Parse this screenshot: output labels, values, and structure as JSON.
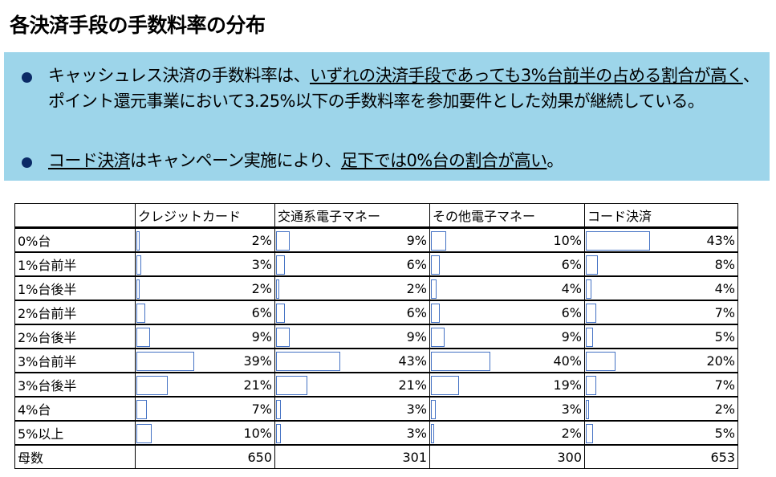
{
  "title": "各決済手段の手数料率の分布",
  "bullets": [
    {
      "parts": [
        {
          "t": "キャッシュレス決済の手数料率は、",
          "u": false
        },
        {
          "t": "いずれの決済手段であっても3%台前半の占める割合が高く",
          "u": true
        },
        {
          "t": "、ポイント還元事業において3.25%以下の手数料率を参加要件とした効果が継続している。",
          "u": false
        }
      ]
    },
    {
      "parts": [
        {
          "t": "コード決済",
          "u": true
        },
        {
          "t": "はキャンペーン実施により、",
          "u": false
        },
        {
          "t": "足下では0%台の割合が高い",
          "u": true
        },
        {
          "t": "。",
          "u": false
        }
      ]
    }
  ],
  "table": {
    "headers": [
      "",
      "クレジットカード",
      "交通系電子マネー",
      "その他電子マネー",
      "コード決済"
    ],
    "rows": [
      {
        "label": "0%台",
        "values": [
          2,
          9,
          10,
          43
        ]
      },
      {
        "label": "1%台前半",
        "values": [
          3,
          6,
          6,
          8
        ]
      },
      {
        "label": "1%台後半",
        "values": [
          2,
          2,
          4,
          4
        ]
      },
      {
        "label": "2%台前半",
        "values": [
          6,
          6,
          6,
          7
        ]
      },
      {
        "label": "2%台後半",
        "values": [
          9,
          9,
          9,
          5
        ]
      },
      {
        "label": "3%台前半",
        "values": [
          39,
          43,
          40,
          20
        ]
      },
      {
        "label": "3%台後半",
        "values": [
          21,
          21,
          19,
          7
        ]
      },
      {
        "label": "4%台",
        "values": [
          7,
          3,
          3,
          2
        ]
      },
      {
        "label": "5%以上",
        "values": [
          10,
          3,
          2,
          5
        ]
      }
    ],
    "footer": {
      "label": "母数",
      "values": [
        "650",
        "301",
        "300",
        "653"
      ]
    }
  },
  "colors": {
    "box": "#9dd5ea",
    "bullet": "#0a2a66",
    "bar_border": "#4472c4"
  }
}
